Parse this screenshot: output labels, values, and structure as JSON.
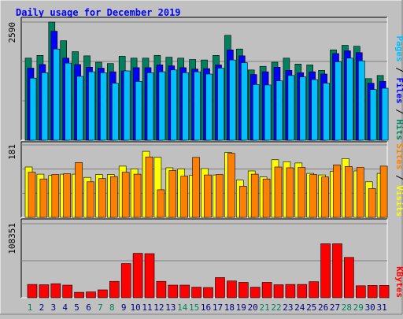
{
  "title": "Daily usage for December 2019",
  "colors": {
    "background": "#c0c0c0",
    "title": "#0000ff",
    "hits": "#00805c",
    "files": "#0000ff",
    "pages": "#00c0ff",
    "visits": "#ffff00",
    "sites": "#ff8000",
    "kbytes": "#ff0000",
    "grid": "#808080",
    "weekend_day_label": "#00805c",
    "weekday_day_label": "#000080"
  },
  "axis": {
    "top_max_label": "2590",
    "mid_max_label": "181",
    "bottom_max_label": "108351"
  },
  "labels": {
    "top_right": [
      {
        "text": "Pages",
        "color": "#00c0ff"
      },
      {
        "text": " / ",
        "color": "#000000"
      },
      {
        "text": "Files",
        "color": "#0000ff"
      },
      {
        "text": " / ",
        "color": "#000000"
      },
      {
        "text": "Hits",
        "color": "#00805c"
      }
    ],
    "mid_right": [
      {
        "text": "Sites",
        "color": "#ff8000"
      },
      {
        "text": " / ",
        "color": "#000000"
      },
      {
        "text": "Visits",
        "color": "#ffff00"
      }
    ],
    "bottom_right": [
      {
        "text": "KBytes",
        "color": "#ff0000"
      }
    ]
  },
  "chart_data": [
    {
      "type": "bar",
      "title": "Daily usage for December 2019",
      "categories": [
        "1",
        "2",
        "3",
        "4",
        "5",
        "6",
        "7",
        "8",
        "9",
        "10",
        "11",
        "12",
        "13",
        "14",
        "15",
        "16",
        "17",
        "18",
        "19",
        "20",
        "21",
        "22",
        "23",
        "24",
        "25",
        "26",
        "27",
        "28",
        "29",
        "30",
        "31"
      ],
      "weekend_days": [
        "1",
        "7",
        "8",
        "14",
        "15",
        "21",
        "22",
        "28",
        "29"
      ],
      "ylim": [
        0,
        2590
      ],
      "series": [
        {
          "name": "Hits",
          "values": [
            1800,
            1860,
            2590,
            2180,
            1940,
            1850,
            1710,
            1680,
            1840,
            1800,
            1800,
            1860,
            1820,
            1800,
            1770,
            1760,
            1860,
            2300,
            2000,
            1540,
            1620,
            1710,
            1800,
            1670,
            1650,
            1530,
            1980,
            2080,
            2060,
            1350,
            1420
          ]
        },
        {
          "name": "Files",
          "values": [
            1580,
            1660,
            2390,
            1800,
            1660,
            1600,
            1580,
            1500,
            1520,
            1590,
            1590,
            1650,
            1630,
            1590,
            1560,
            1570,
            1650,
            1980,
            1850,
            1440,
            1500,
            1600,
            1530,
            1480,
            1500,
            1450,
            1900,
            1960,
            1920,
            1250,
            1290
          ]
        },
        {
          "name": "Pages",
          "values": [
            1360,
            1480,
            2000,
            1690,
            1400,
            1500,
            1480,
            1250,
            1520,
            1290,
            1480,
            1500,
            1540,
            1480,
            1500,
            1450,
            1580,
            1760,
            1700,
            1220,
            1210,
            1300,
            1420,
            1390,
            1330,
            1250,
            1720,
            1800,
            1740,
            1110,
            1140
          ]
        }
      ]
    },
    {
      "type": "bar",
      "ylim": [
        0,
        181
      ],
      "series": [
        {
          "name": "Visits",
          "values": [
            126,
            108,
            105,
            108,
            108,
            100,
            107,
            107,
            128,
            121,
            165,
            150,
            124,
            121,
            105,
            122,
            106,
            162,
            93,
            116,
            101,
            144,
            139,
            136,
            110,
            106,
            115,
            147,
            116,
            89,
            110
          ]
        },
        {
          "name": "Sites",
          "values": [
            113,
            96,
            107,
            109,
            137,
            89,
            97,
            102,
            113,
            108,
            151,
            69,
            117,
            103,
            150,
            106,
            107,
            160,
            78,
            108,
            96,
            126,
            124,
            125,
            107,
            101,
            131,
            127,
            125,
            72,
            128
          ]
        }
      ]
    },
    {
      "type": "bar",
      "ylim": [
        0,
        108351
      ],
      "series": [
        {
          "name": "KBytes",
          "values": [
            19500,
            19000,
            20500,
            18500,
            8000,
            8500,
            11500,
            24000,
            50000,
            65000,
            64500,
            24000,
            18500,
            18500,
            15500,
            15000,
            29500,
            24500,
            22500,
            15500,
            22500,
            19000,
            19500,
            19500,
            23500,
            79000,
            79000,
            59000,
            17500,
            18000,
            18000
          ]
        }
      ]
    }
  ]
}
